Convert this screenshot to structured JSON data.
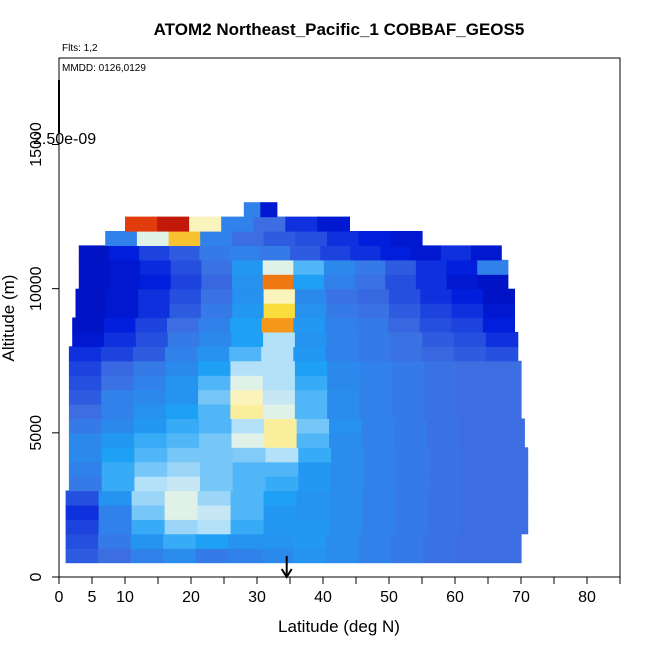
{
  "chart_data": {
    "type": "heatmap",
    "title": "ATOM2 Northeast_Pacific_1 COBBAF_GEOS5",
    "flights_label": "Flts: 1,2",
    "dates_label": "MMDD: 0126,0129",
    "xlabel": "Latitude (deg N)",
    "ylabel": "Altitude (m)",
    "xlim": [
      0,
      85
    ],
    "ylim": [
      0,
      18000
    ],
    "x_ticks": [
      0,
      5,
      10,
      15,
      20,
      25,
      30,
      35,
      40,
      45,
      50,
      55,
      60,
      65,
      70,
      75,
      80,
      85
    ],
    "x_tick_labels": [
      "0",
      "5",
      "10",
      "",
      "20",
      "",
      "30",
      "",
      "40",
      "",
      "50",
      "",
      "60",
      "",
      "70",
      "",
      "80",
      ""
    ],
    "y_ticks": [
      0,
      5000,
      10000,
      15000
    ],
    "y_tick_labels": [
      "0",
      "5000",
      "10000",
      "15000"
    ],
    "colorbar_max_label": "2.50e-09",
    "arrow_latitude": 34.5,
    "grid": false,
    "layers": [
      {
        "y0": 500,
        "y1": 1000,
        "x0": 1,
        "x1": 70,
        "values": [
          0.22,
          0.25,
          0.3,
          0.33,
          0.28,
          0.3,
          0.32,
          0.35,
          0.33,
          0.3,
          0.28,
          0.26,
          0.25,
          0.25
        ]
      },
      {
        "y0": 1000,
        "y1": 1500,
        "x0": 1,
        "x1": 70,
        "values": [
          0.2,
          0.28,
          0.35,
          0.4,
          0.38,
          0.35,
          0.35,
          0.36,
          0.33,
          0.3,
          0.28,
          0.26,
          0.25,
          0.25
        ]
      },
      {
        "y0": 1500,
        "y1": 2000,
        "x0": 1,
        "x1": 71,
        "values": [
          0.18,
          0.3,
          0.4,
          0.48,
          0.5,
          0.4,
          0.36,
          0.36,
          0.33,
          0.3,
          0.28,
          0.26,
          0.25,
          0.25
        ]
      },
      {
        "y0": 2000,
        "y1": 2500,
        "x0": 1,
        "x1": 71,
        "values": [
          0.15,
          0.3,
          0.45,
          0.55,
          0.52,
          0.42,
          0.36,
          0.35,
          0.33,
          0.3,
          0.28,
          0.26,
          0.25,
          0.25
        ]
      },
      {
        "y0": 2500,
        "y1": 3000,
        "x0": 1,
        "x1": 71,
        "values": [
          0.2,
          0.35,
          0.48,
          0.55,
          0.48,
          0.42,
          0.38,
          0.35,
          0.33,
          0.3,
          0.28,
          0.26,
          0.25,
          0.25
        ]
      },
      {
        "y0": 3000,
        "y1": 3500,
        "x0": 1.5,
        "x1": 71,
        "values": [
          0.28,
          0.4,
          0.5,
          0.52,
          0.45,
          0.42,
          0.4,
          0.36,
          0.33,
          0.3,
          0.28,
          0.26,
          0.25,
          0.25
        ]
      },
      {
        "y0": 3500,
        "y1": 4000,
        "x0": 1.5,
        "x1": 71,
        "values": [
          0.3,
          0.4,
          0.45,
          0.48,
          0.45,
          0.42,
          0.42,
          0.36,
          0.33,
          0.3,
          0.28,
          0.26,
          0.25,
          0.25
        ]
      },
      {
        "y0": 4000,
        "y1": 4500,
        "x0": 1.5,
        "x1": 71,
        "values": [
          0.32,
          0.38,
          0.42,
          0.45,
          0.45,
          0.46,
          0.5,
          0.4,
          0.33,
          0.3,
          0.28,
          0.26,
          0.25,
          0.25
        ]
      },
      {
        "y0": 4500,
        "y1": 5000,
        "x0": 1.5,
        "x1": 70.5,
        "values": [
          0.32,
          0.36,
          0.4,
          0.42,
          0.45,
          0.55,
          0.62,
          0.42,
          0.33,
          0.3,
          0.28,
          0.26,
          0.25,
          0.25
        ]
      },
      {
        "y0": 5000,
        "y1": 5500,
        "x0": 1.5,
        "x1": 70.5,
        "values": [
          0.28,
          0.32,
          0.36,
          0.4,
          0.42,
          0.5,
          0.62,
          0.45,
          0.34,
          0.3,
          0.28,
          0.26,
          0.25,
          0.25
        ]
      },
      {
        "y0": 5500,
        "y1": 6000,
        "x0": 1.5,
        "x1": 70,
        "values": [
          0.25,
          0.3,
          0.34,
          0.38,
          0.42,
          0.62,
          0.55,
          0.42,
          0.33,
          0.3,
          0.28,
          0.26,
          0.25,
          0.25
        ]
      },
      {
        "y0": 6000,
        "y1": 6500,
        "x0": 1.5,
        "x1": 70,
        "values": [
          0.22,
          0.3,
          0.32,
          0.35,
          0.45,
          0.6,
          0.52,
          0.42,
          0.33,
          0.3,
          0.28,
          0.26,
          0.25,
          0.25
        ]
      },
      {
        "y0": 6500,
        "y1": 7000,
        "x0": 1.5,
        "x1": 70,
        "values": [
          0.2,
          0.26,
          0.3,
          0.35,
          0.42,
          0.55,
          0.5,
          0.4,
          0.32,
          0.3,
          0.28,
          0.26,
          0.25,
          0.25
        ]
      },
      {
        "y0": 7000,
        "y1": 7500,
        "x0": 1.5,
        "x1": 70,
        "values": [
          0.18,
          0.24,
          0.28,
          0.32,
          0.38,
          0.5,
          0.5,
          0.38,
          0.32,
          0.3,
          0.28,
          0.26,
          0.25,
          0.25
        ]
      },
      {
        "y0": 7500,
        "y1": 8000,
        "x0": 1.5,
        "x1": 69.5,
        "values": [
          0.15,
          0.18,
          0.22,
          0.3,
          0.34,
          0.42,
          0.5,
          0.36,
          0.3,
          0.28,
          0.26,
          0.24,
          0.22,
          0.2
        ]
      },
      {
        "y0": 8000,
        "y1": 8500,
        "x0": 2,
        "x1": 69.5,
        "values": [
          0.1,
          0.15,
          0.2,
          0.28,
          0.32,
          0.38,
          0.5,
          0.35,
          0.3,
          0.28,
          0.26,
          0.22,
          0.2,
          0.15
        ]
      },
      {
        "y0": 8500,
        "y1": 9000,
        "x0": 2,
        "x1": 69,
        "values": [
          0.08,
          0.12,
          0.18,
          0.25,
          0.3,
          0.38,
          0.78,
          0.36,
          0.3,
          0.28,
          0.24,
          0.2,
          0.18,
          0.12
        ]
      },
      {
        "y0": 9000,
        "y1": 9500,
        "x0": 2.5,
        "x1": 69,
        "values": [
          0.08,
          0.1,
          0.15,
          0.22,
          0.28,
          0.36,
          0.68,
          0.34,
          0.28,
          0.26,
          0.22,
          0.18,
          0.15,
          0.1
        ]
      },
      {
        "y0": 9500,
        "y1": 10000,
        "x0": 2.5,
        "x1": 69,
        "values": [
          0.08,
          0.1,
          0.15,
          0.2,
          0.26,
          0.34,
          0.6,
          0.32,
          0.26,
          0.24,
          0.2,
          0.15,
          0.12,
          0.08
        ]
      },
      {
        "y0": 10000,
        "y1": 10500,
        "x0": 3,
        "x1": 68,
        "values": [
          0.08,
          0.1,
          0.12,
          0.18,
          0.24,
          0.34,
          0.82,
          0.38,
          0.3,
          0.26,
          0.2,
          0.15,
          0.1,
          0.08
        ]
      },
      {
        "y0": 10500,
        "y1": 11000,
        "x0": 3,
        "x1": 68,
        "values": [
          0.08,
          0.1,
          0.14,
          0.2,
          0.26,
          0.36,
          0.55,
          0.42,
          0.32,
          0.28,
          0.22,
          0.15,
          0.12,
          0.3
        ]
      },
      {
        "y0": 11000,
        "y1": 11500,
        "x0": 3,
        "x1": 67,
        "values": [
          0.08,
          0.12,
          0.18,
          0.22,
          0.28,
          0.3,
          0.28,
          0.22,
          0.18,
          0.15,
          0.12,
          0.1,
          0.15,
          0.1
        ]
      },
      {
        "y0": 11500,
        "y1": 12000,
        "x0": 7,
        "x1": 55,
        "values": [
          0.3,
          0.55,
          0.72,
          0.3,
          0.25,
          0.22,
          0.2,
          0.15,
          0.12,
          0.1
        ]
      },
      {
        "y0": 12000,
        "y1": 12500,
        "x0": 10,
        "x1": 44,
        "values": [
          0.88,
          0.95,
          0.6,
          0.3,
          0.25,
          0.15,
          0.1
        ]
      },
      {
        "y0": 12500,
        "y1": 13000,
        "x0": 28,
        "x1": 33,
        "values": [
          0.3,
          0.1
        ]
      }
    ]
  }
}
